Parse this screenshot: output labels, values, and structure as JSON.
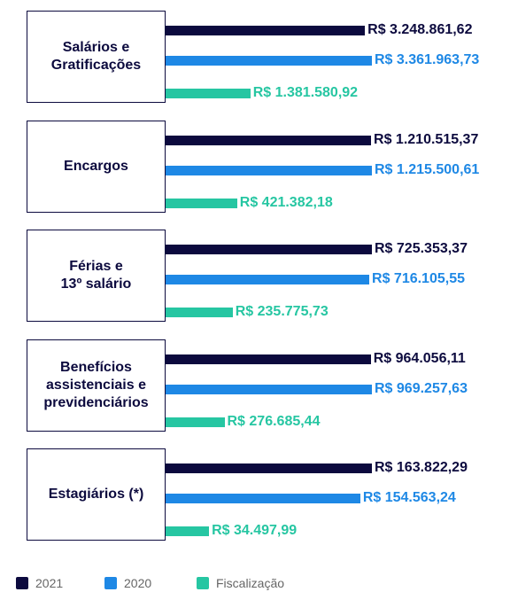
{
  "chart_data": {
    "type": "bar",
    "categories": [
      "Salários e\nGratificações",
      "Encargos",
      "Férias e\n13º salário",
      "Benefícios\nassistenciais e\nprevidenciários",
      "Estagiários (*)"
    ],
    "series": [
      {
        "name": "2021",
        "color": "#0c0a3e",
        "values": [
          3248861.62,
          1210515.37,
          725353.37,
          964056.11,
          163822.29
        ],
        "value_labels": [
          "R$ 3.248.861,62",
          "R$ 1.210.515,37",
          "R$ 725.353,37",
          "R$ 964.056,11",
          "R$ 163.822,29"
        ]
      },
      {
        "name": "2020",
        "color": "#1e88e5",
        "values": [
          3361963.73,
          1215500.61,
          716105.55,
          969257.63,
          154563.24
        ],
        "value_labels": [
          "R$ 3.361.963,73",
          "R$ 1.215.500,61",
          "R$ 716.105,55",
          "R$ 969.257,63",
          "R$ 154.563,24"
        ]
      },
      {
        "name": "Fiscalização",
        "color": "#26c6a2",
        "values": [
          1381580.92,
          421382.18,
          235775.73,
          276685.44,
          34497.99
        ],
        "value_labels": [
          "R$ 1.381.580,92",
          "R$ 421.382,18",
          "R$ 235.775,73",
          "R$ 276.685,44",
          "R$ 34.497,99"
        ]
      }
    ]
  }
}
